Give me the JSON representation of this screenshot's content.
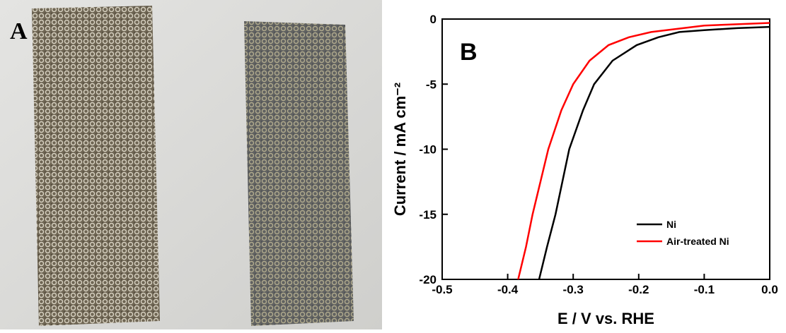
{
  "photo": {
    "label": "A"
  },
  "chart_data": {
    "type": "line",
    "annotation": "B",
    "xlabel": "E / V vs. RHE",
    "ylabel": "Current / mA cm⁻²",
    "xlim": [
      -0.5,
      0.0
    ],
    "xticks": [
      -0.5,
      -0.4,
      -0.3,
      -0.2,
      -0.1,
      {
        "value": 0,
        "label": "0.0"
      }
    ],
    "ylim": [
      -20,
      0
    ],
    "yticks": [
      0,
      -5,
      -10,
      -15,
      -20
    ],
    "legend": "lower right",
    "series": [
      {
        "name": "Ni",
        "color": "#000000",
        "x": [
          -0.352,
          -0.34,
          -0.327,
          -0.306,
          -0.285,
          -0.268,
          -0.24,
          -0.203,
          -0.17,
          -0.138,
          -0.1,
          -0.05,
          0
        ],
        "values": [
          -20,
          -17.5,
          -15,
          -10,
          -7,
          -5,
          -3.2,
          -2,
          -1.4,
          -1.0,
          -0.85,
          -0.7,
          -0.6
        ]
      },
      {
        "name": "Air-treated Ni",
        "color": "#ff0000",
        "x": [
          -0.384,
          -0.372,
          -0.362,
          -0.338,
          -0.318,
          -0.3,
          -0.275,
          -0.246,
          -0.215,
          -0.181,
          -0.1,
          -0.05,
          0
        ],
        "values": [
          -20,
          -17.5,
          -15,
          -10,
          -7,
          -5,
          -3.2,
          -2,
          -1.4,
          -1.0,
          -0.5,
          -0.4,
          -0.3
        ]
      }
    ]
  }
}
